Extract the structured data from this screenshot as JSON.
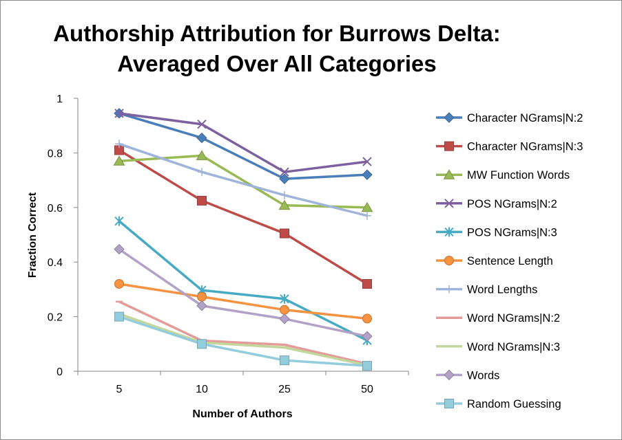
{
  "chart_data": {
    "type": "line",
    "title_lines": [
      "Authorship Attribution for Burrows Delta:",
      "Averaged Over All Categories"
    ],
    "xlabel": "Number of Authors",
    "ylabel": "Fraction Correct",
    "categories": [
      "5",
      "10",
      "25",
      "50"
    ],
    "ylim": [
      0,
      1
    ],
    "yticks": [
      "0",
      "0.2",
      "0.4",
      "0.6",
      "0.8",
      "1"
    ],
    "ytick_values": [
      0,
      0.2,
      0.4,
      0.6,
      0.8,
      1
    ],
    "grid": false,
    "legend_position": "right",
    "series": [
      {
        "name": "Character NGrams|N:2",
        "values": [
          0.945,
          0.855,
          0.705,
          0.72
        ],
        "color": "#4a7ebb",
        "marker": "diamond"
      },
      {
        "name": "Character NGrams|N:3",
        "values": [
          0.81,
          0.625,
          0.505,
          0.32
        ],
        "color": "#be4b48",
        "marker": "square"
      },
      {
        "name": "MW Function Words",
        "values": [
          0.77,
          0.79,
          0.608,
          0.6
        ],
        "color": "#98b954",
        "marker": "triangle"
      },
      {
        "name": "POS NGrams|N:2",
        "values": [
          0.945,
          0.905,
          0.73,
          0.768
        ],
        "color": "#7d60a0",
        "marker": "x"
      },
      {
        "name": "POS NGrams|N:3",
        "values": [
          0.55,
          0.297,
          0.265,
          0.113
        ],
        "color": "#46aac5",
        "marker": "star"
      },
      {
        "name": "Sentence Length",
        "values": [
          0.32,
          0.273,
          0.225,
          0.193
        ],
        "color": "#f69240",
        "marker": "circle"
      },
      {
        "name": "Word Lengths",
        "values": [
          0.833,
          0.73,
          0.645,
          0.57
        ],
        "color": "#9fb4da",
        "marker": "plus"
      },
      {
        "name": "Word NGrams|N:2",
        "values": [
          0.255,
          0.112,
          0.097,
          0.027
        ],
        "color": "#e39c9a",
        "marker": "dash"
      },
      {
        "name": "Word NGrams|N:3",
        "values": [
          0.21,
          0.105,
          0.087,
          0.022
        ],
        "color": "#c3d69b",
        "marker": "dash"
      },
      {
        "name": "Words",
        "values": [
          0.447,
          0.24,
          0.192,
          0.128
        ],
        "color": "#b2a2c7",
        "marker": "diamond"
      },
      {
        "name": "Random Guessing",
        "values": [
          0.2,
          0.1,
          0.04,
          0.02
        ],
        "color": "#93cddd",
        "marker": "square"
      }
    ]
  }
}
